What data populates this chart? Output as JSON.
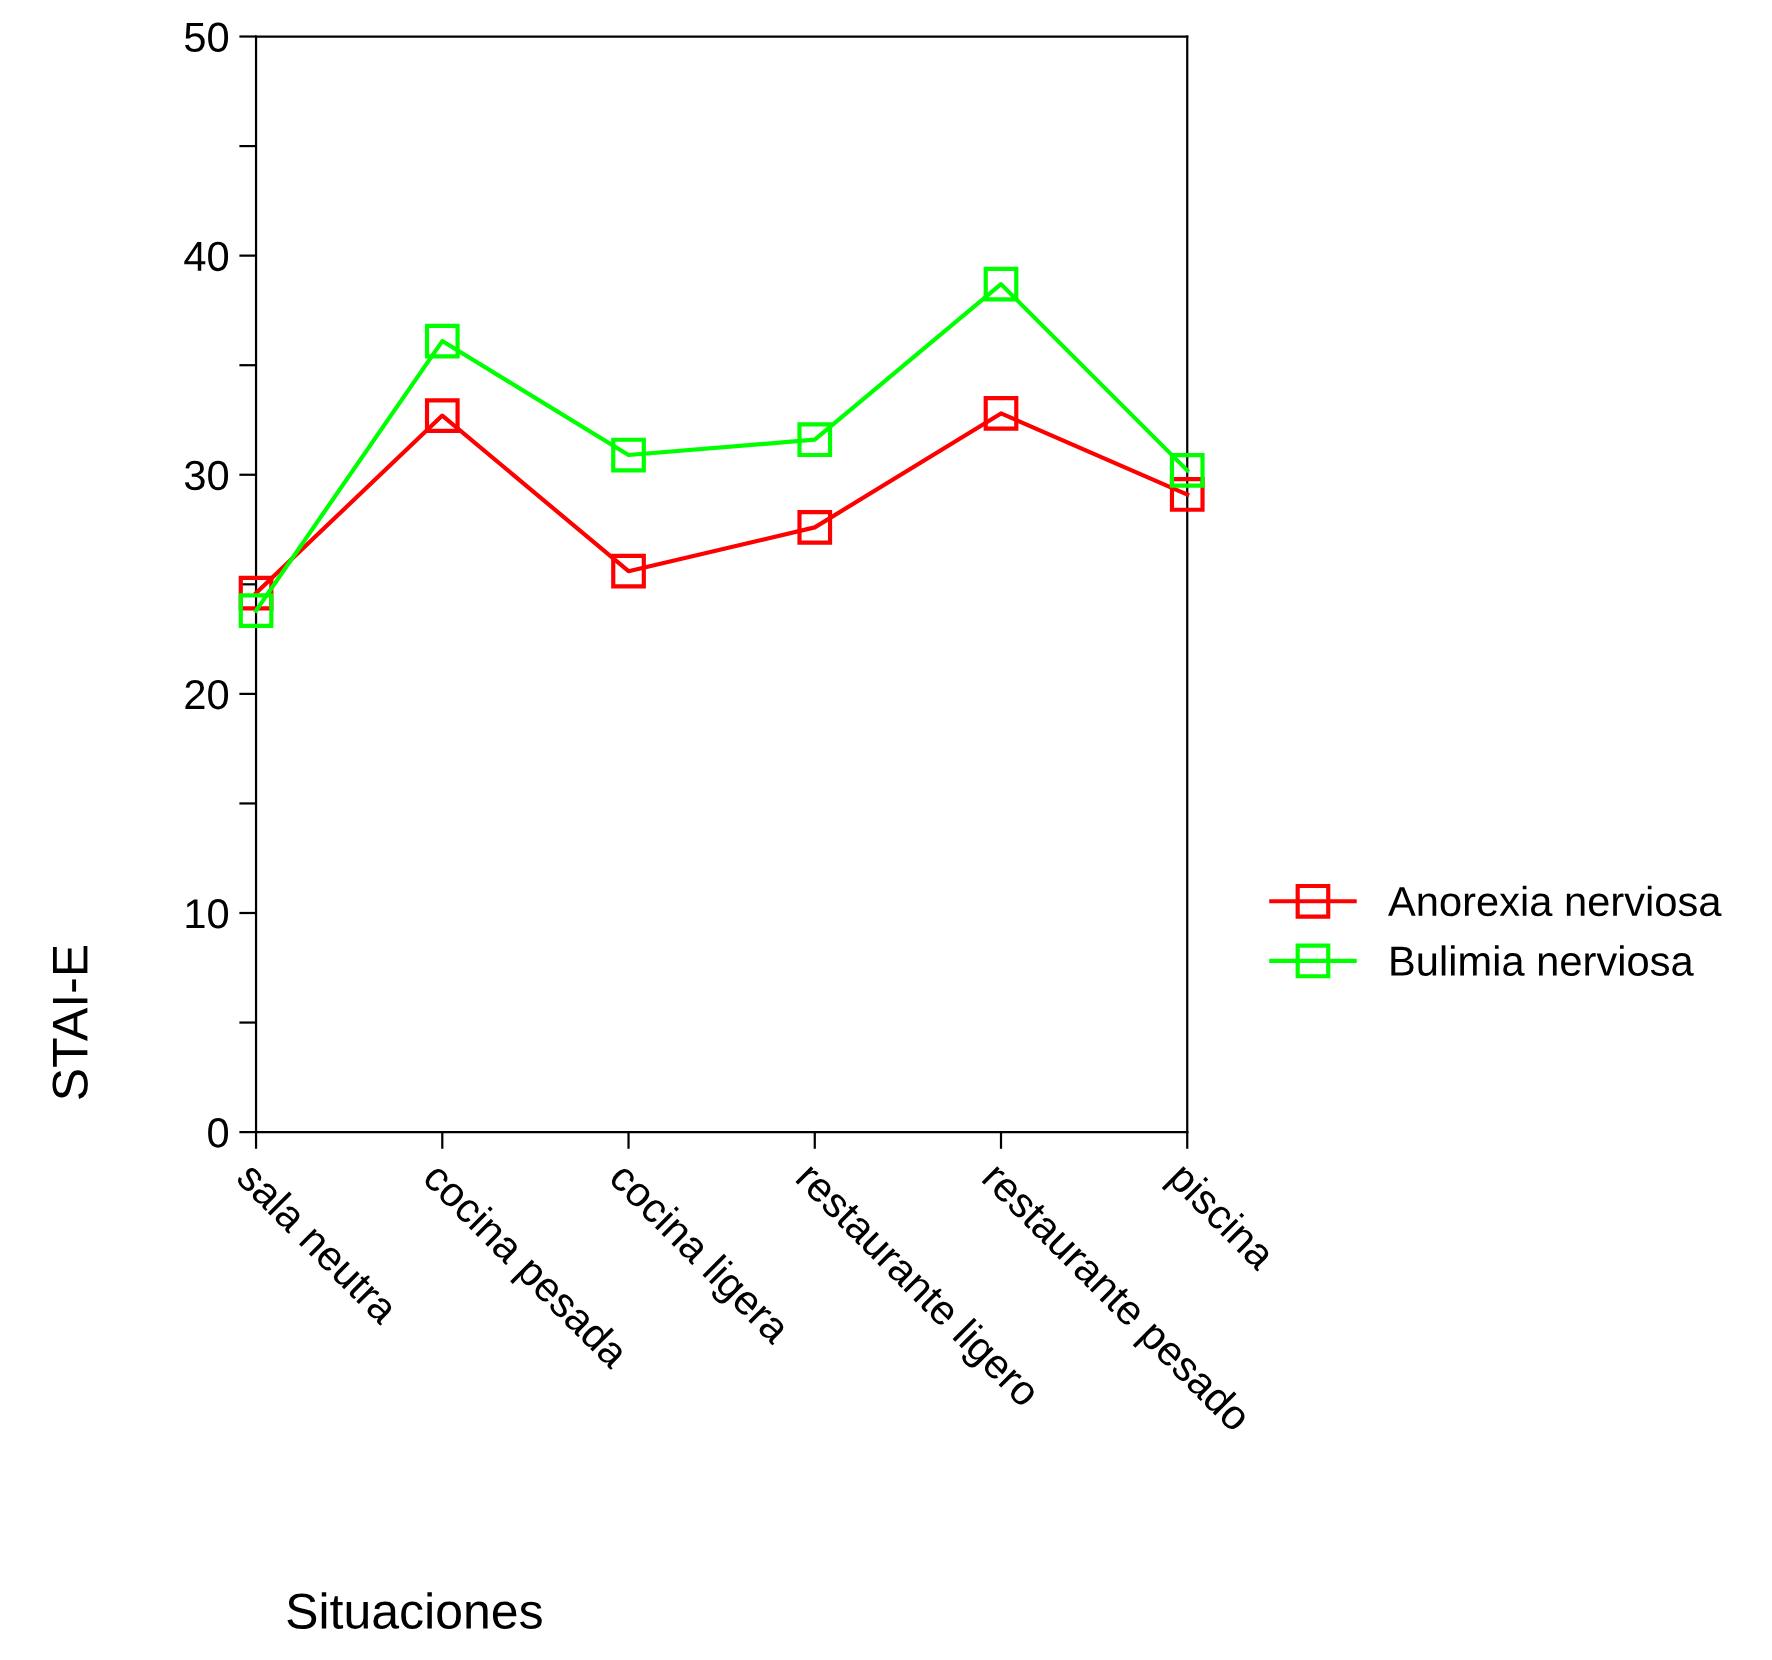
{
  "chart_data": {
    "type": "line",
    "xlabel": "Situaciones",
    "ylabel": "STAI-E",
    "categories": [
      "sala neutra",
      "cocina pesada",
      "cocina ligera",
      "restaurante ligero",
      "restaurante pesado",
      "piscina"
    ],
    "series": [
      {
        "name": "Anorexia nerviosa",
        "color": "#ff0000",
        "values": [
          24.6,
          32.7,
          25.6,
          27.6,
          32.8,
          29.1
        ]
      },
      {
        "name": "Bulimia nerviosa",
        "color": "#00ff00",
        "values": [
          23.8,
          36.1,
          30.9,
          31.6,
          38.7,
          30.2
        ]
      }
    ],
    "ylim": [
      0,
      50
    ],
    "yticks": [
      0,
      {
        "value": 5,
        "label": null
      },
      10,
      {
        "value": 15,
        "label": null
      },
      20,
      {
        "value": 25,
        "label": null
      },
      30,
      {
        "value": 35,
        "label": null
      },
      40,
      {
        "value": 45,
        "label": null
      },
      50
    ],
    "marker": "square",
    "line_style": "solid",
    "legend": "right",
    "grid": false
  }
}
